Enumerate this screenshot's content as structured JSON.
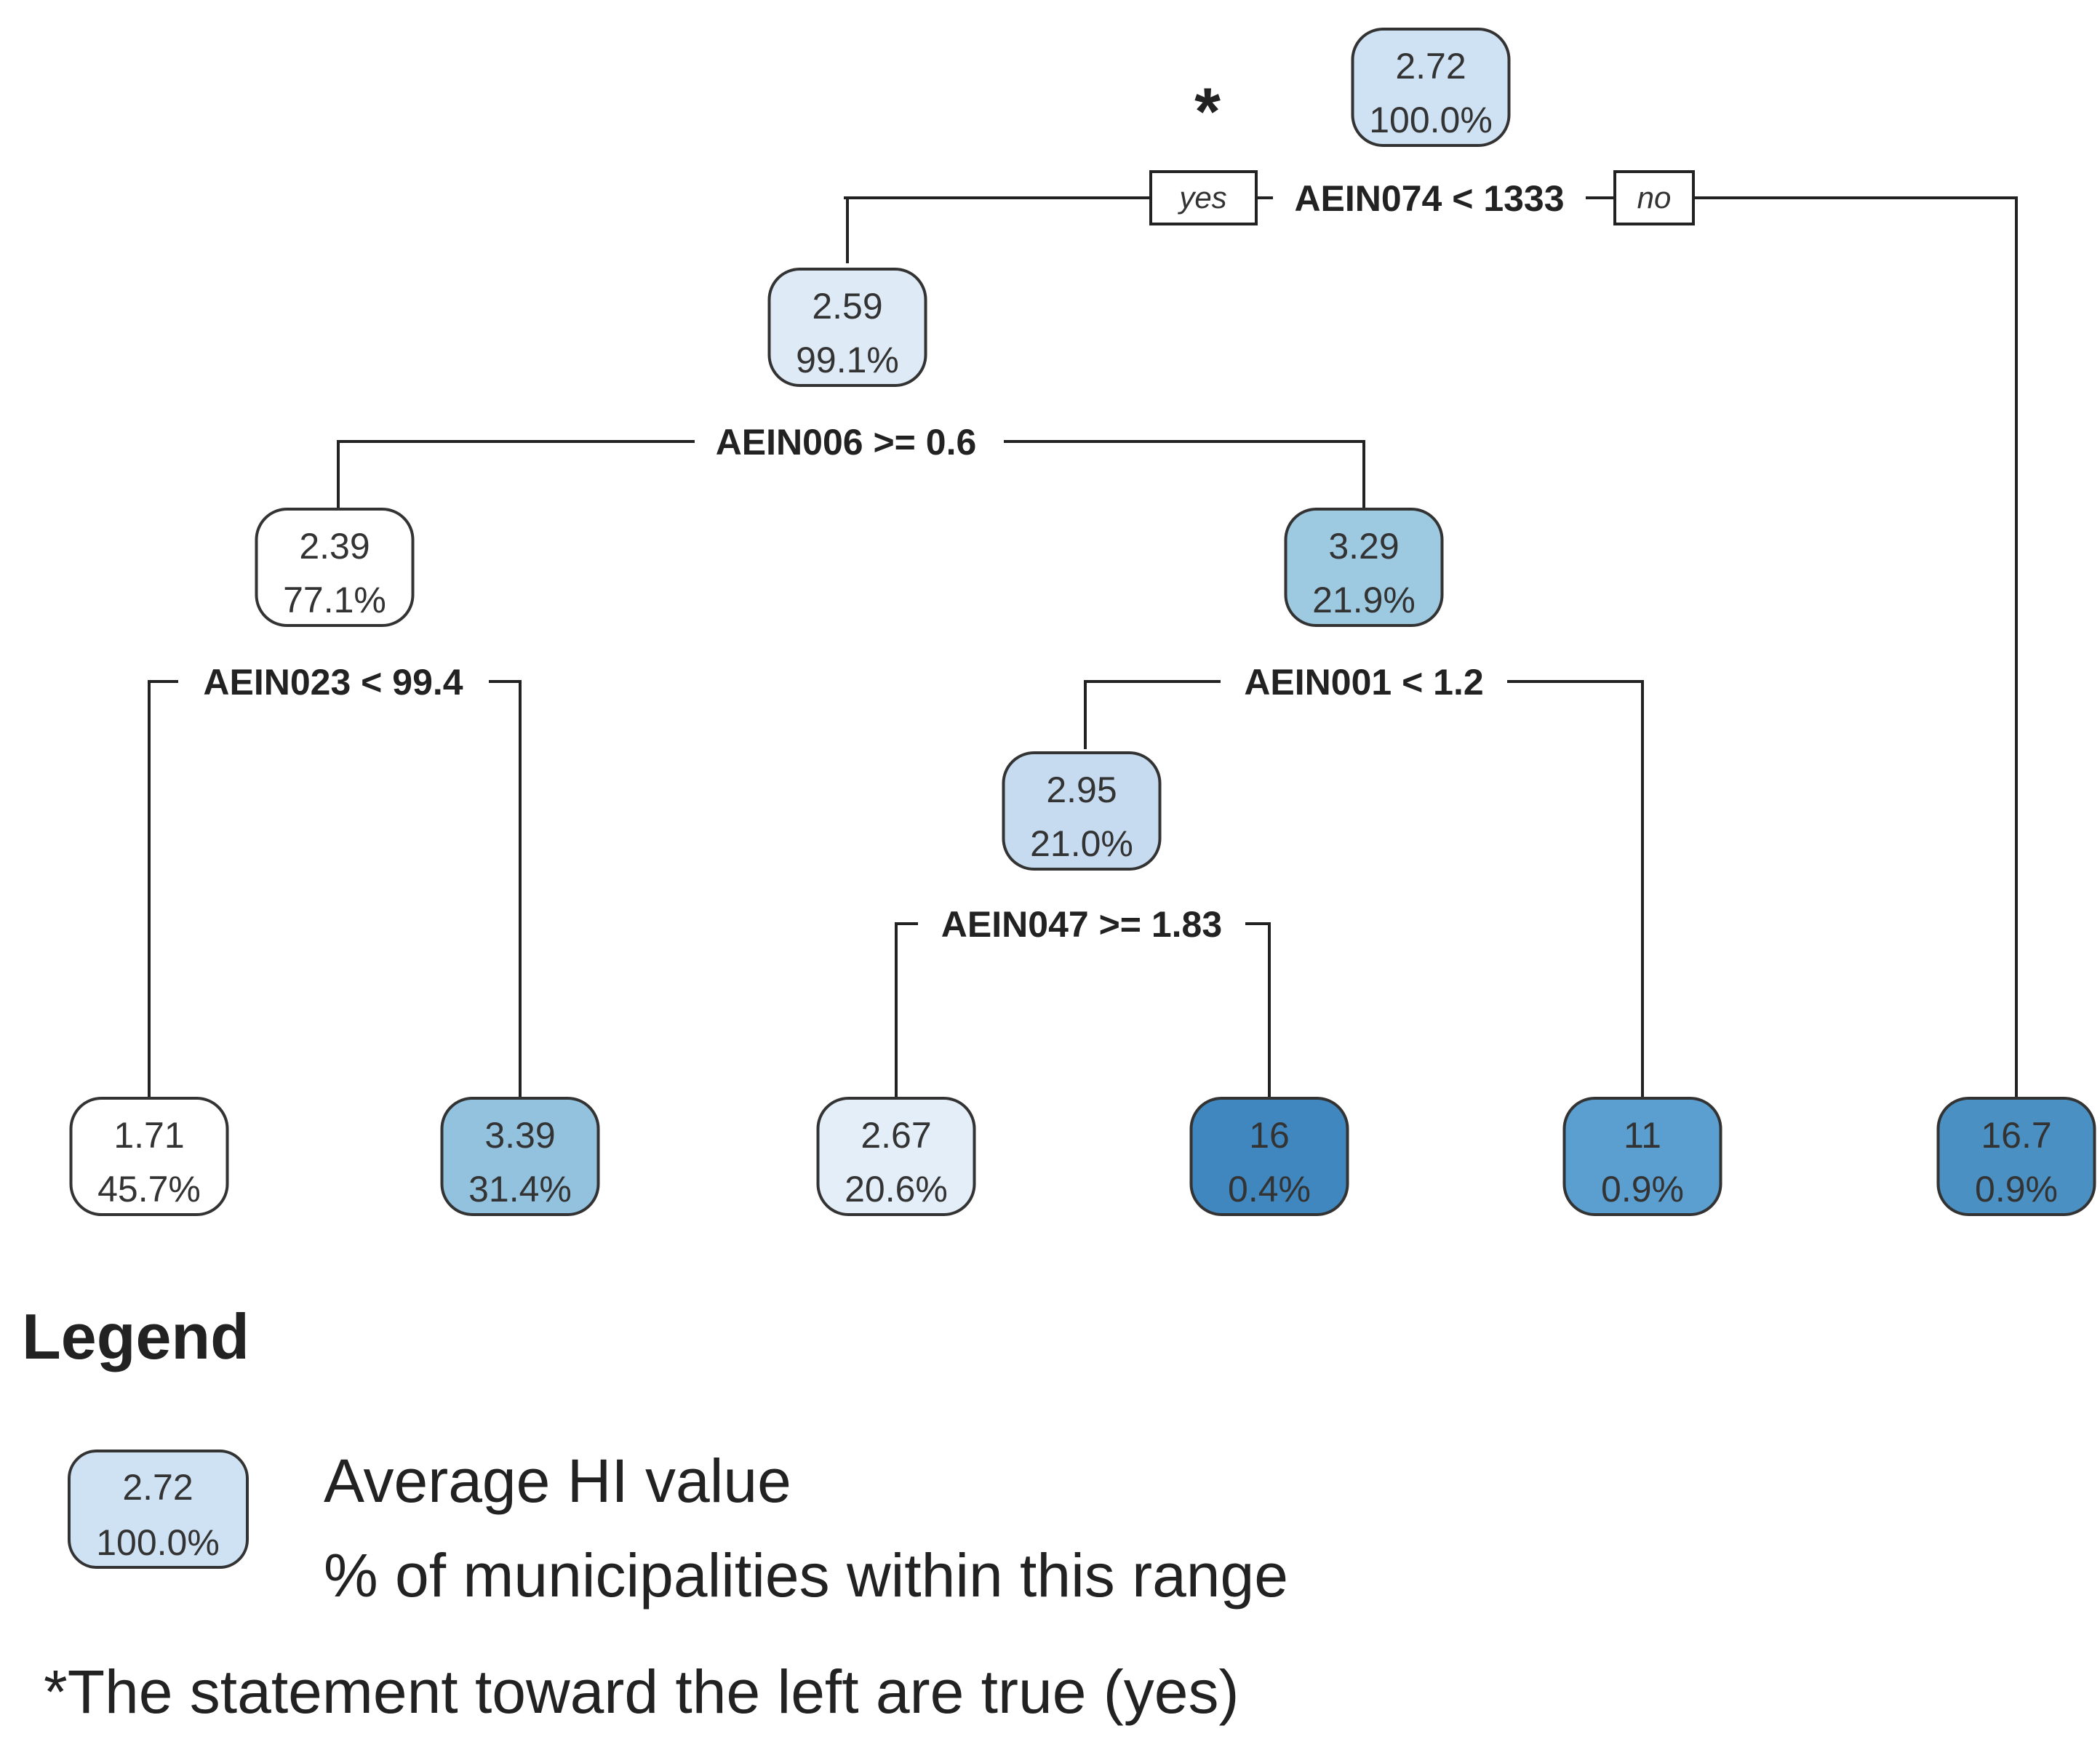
{
  "tree": {
    "nodes": [
      {
        "id": "root",
        "value": "2.72",
        "percent": "100.0%",
        "fill": "#cfe2f3"
      },
      {
        "id": "n2",
        "value": "2.59",
        "percent": "99.1%",
        "fill": "#deebf7"
      },
      {
        "id": "n3",
        "value": "16.7",
        "percent": "0.9%",
        "fill": "#4a90c2"
      },
      {
        "id": "n4",
        "value": "2.39",
        "percent": "77.1%",
        "fill": "#ffffff"
      },
      {
        "id": "n5",
        "value": "3.29",
        "percent": "21.9%",
        "fill": "#9ecae1"
      },
      {
        "id": "n8",
        "value": "1.71",
        "percent": "45.7%",
        "fill": "#ffffff"
      },
      {
        "id": "n9",
        "value": "3.39",
        "percent": "31.4%",
        "fill": "#93c2de"
      },
      {
        "id": "n10",
        "value": "2.95",
        "percent": "21.0%",
        "fill": "#c6dbef"
      },
      {
        "id": "n11",
        "value": "11",
        "percent": "0.9%",
        "fill": "#5a9fd0"
      },
      {
        "id": "n20",
        "value": "2.67",
        "percent": "20.6%",
        "fill": "#e3eef8"
      },
      {
        "id": "n21",
        "value": "16",
        "percent": "0.4%",
        "fill": "#3f87be"
      }
    ],
    "splits": [
      {
        "id": "s1",
        "label": "AEIN074 < 1333"
      },
      {
        "id": "s2",
        "label": "AEIN006 >= 0.6"
      },
      {
        "id": "s3",
        "label": "AEIN023 < 99.4"
      },
      {
        "id": "s4",
        "label": "AEIN001 < 1.2"
      },
      {
        "id": "s5",
        "label": "AEIN047 >= 1.83"
      }
    ],
    "yes_label": "yes",
    "no_label": "no",
    "asterisk": "*"
  },
  "legend": {
    "title": "Legend",
    "sample_value": "2.72",
    "sample_percent": "100.0%",
    "sample_fill": "#cfe2f3",
    "value_desc": "Average HI value",
    "percent_desc": "% of municipalities within this range",
    "footnote": "*The statement toward the left are true (yes)"
  }
}
